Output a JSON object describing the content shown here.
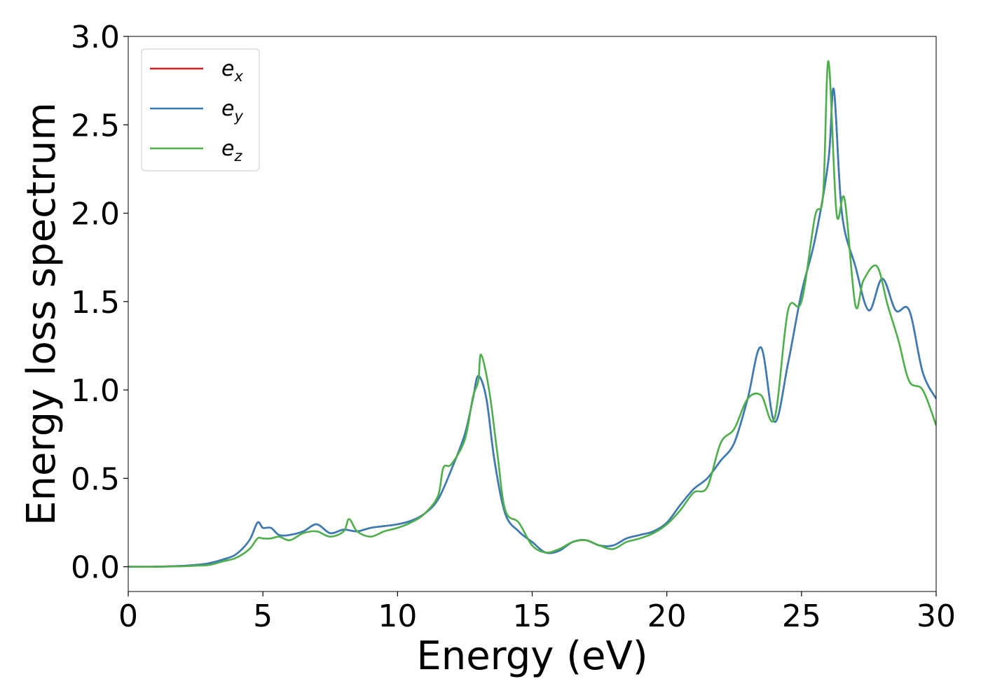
{
  "chart_data": {
    "type": "line",
    "xlabel": "Energy (eV)",
    "ylabel": "Energy loss spectrum",
    "xlim": [
      0,
      30
    ],
    "ylim": [
      -0.14,
      3.0
    ],
    "xticks": [
      0,
      5,
      10,
      15,
      20,
      25,
      30
    ],
    "xtick_labels": [
      "0",
      "5",
      "10",
      "15",
      "20",
      "25",
      "30"
    ],
    "yticks": [
      0.0,
      0.5,
      1.0,
      1.5,
      2.0,
      2.5,
      3.0
    ],
    "ytick_labels": [
      "0.0",
      "0.5",
      "1.0",
      "1.5",
      "2.0",
      "2.5",
      "3.0"
    ],
    "grid": false,
    "legend_position": "top-left",
    "series": [
      {
        "name": "e_x",
        "legend_base": "e",
        "legend_sub": "x",
        "color": "#e41a1c",
        "x": [
          0,
          1,
          2,
          2.5,
          3,
          3.5,
          4,
          4.5,
          4.8,
          5,
          5.3,
          5.6,
          6,
          6.5,
          7,
          7.5,
          8,
          8.5,
          9,
          9.5,
          10,
          10.5,
          11,
          11.5,
          12,
          12.5,
          12.8,
          13,
          13.3,
          13.6,
          14,
          14.5,
          15,
          15.5,
          16,
          16.5,
          17,
          17.5,
          18,
          18.5,
          19,
          19.5,
          20,
          20.5,
          21,
          21.5,
          22,
          22.5,
          23,
          23.5,
          24,
          24.5,
          25,
          25.5,
          26,
          26.2,
          26.5,
          27,
          27.5,
          28,
          28.5,
          29,
          29.5,
          30
        ],
        "values": [
          0,
          0,
          0.005,
          0.01,
          0.02,
          0.04,
          0.07,
          0.15,
          0.25,
          0.22,
          0.22,
          0.18,
          0.18,
          0.2,
          0.24,
          0.19,
          0.21,
          0.2,
          0.22,
          0.23,
          0.24,
          0.26,
          0.3,
          0.38,
          0.55,
          0.75,
          0.95,
          1.08,
          0.95,
          0.6,
          0.3,
          0.2,
          0.14,
          0.08,
          0.09,
          0.14,
          0.15,
          0.12,
          0.12,
          0.16,
          0.18,
          0.2,
          0.25,
          0.35,
          0.44,
          0.5,
          0.6,
          0.7,
          0.95,
          1.24,
          0.82,
          1.15,
          1.55,
          1.85,
          2.3,
          2.7,
          2.0,
          1.7,
          1.45,
          1.63,
          1.45,
          1.45,
          1.1,
          0.95
        ]
      },
      {
        "name": "e_y",
        "legend_base": "e",
        "legend_sub": "y",
        "color": "#377eb8",
        "x": [
          0,
          1,
          2,
          2.5,
          3,
          3.5,
          4,
          4.5,
          4.8,
          5,
          5.3,
          5.6,
          6,
          6.5,
          7,
          7.5,
          8,
          8.5,
          9,
          9.5,
          10,
          10.5,
          11,
          11.5,
          12,
          12.5,
          12.8,
          13,
          13.3,
          13.6,
          14,
          14.5,
          15,
          15.5,
          16,
          16.5,
          17,
          17.5,
          18,
          18.5,
          19,
          19.5,
          20,
          20.5,
          21,
          21.5,
          22,
          22.5,
          23,
          23.5,
          24,
          24.5,
          25,
          25.5,
          26,
          26.2,
          26.5,
          27,
          27.5,
          28,
          28.5,
          29,
          29.5,
          30
        ],
        "values": [
          0,
          0,
          0.005,
          0.01,
          0.02,
          0.04,
          0.07,
          0.15,
          0.25,
          0.22,
          0.22,
          0.18,
          0.18,
          0.2,
          0.24,
          0.19,
          0.21,
          0.2,
          0.22,
          0.23,
          0.24,
          0.26,
          0.3,
          0.38,
          0.55,
          0.75,
          0.95,
          1.08,
          0.95,
          0.6,
          0.3,
          0.2,
          0.14,
          0.08,
          0.09,
          0.14,
          0.15,
          0.12,
          0.12,
          0.16,
          0.18,
          0.2,
          0.25,
          0.35,
          0.44,
          0.5,
          0.6,
          0.7,
          0.95,
          1.24,
          0.82,
          1.15,
          1.55,
          1.85,
          2.3,
          2.7,
          2.0,
          1.7,
          1.45,
          1.63,
          1.45,
          1.45,
          1.1,
          0.95
        ]
      },
      {
        "name": "e_z",
        "legend_base": "e",
        "legend_sub": "z",
        "color": "#4daf4a",
        "x": [
          0,
          1,
          2,
          2.5,
          3,
          3.5,
          4,
          4.5,
          4.8,
          5,
          5.3,
          5.6,
          6,
          6.5,
          7,
          7.5,
          8,
          8.2,
          8.5,
          9,
          9.5,
          10,
          10.5,
          11,
          11.5,
          11.7,
          12,
          12.5,
          12.8,
          13,
          13.1,
          13.4,
          13.7,
          14,
          14.5,
          15,
          15.5,
          16,
          16.5,
          17,
          17.5,
          18,
          18.5,
          19,
          19.5,
          20,
          20.5,
          21,
          21.5,
          22,
          22.5,
          23,
          23.5,
          24,
          24.5,
          25,
          25.5,
          25.8,
          26,
          26.3,
          26.6,
          27,
          27.3,
          27.8,
          28.2,
          28.6,
          29,
          29.5,
          30
        ],
        "values": [
          0,
          0,
          0.003,
          0.006,
          0.01,
          0.03,
          0.05,
          0.1,
          0.16,
          0.16,
          0.16,
          0.17,
          0.15,
          0.19,
          0.2,
          0.17,
          0.2,
          0.27,
          0.2,
          0.17,
          0.2,
          0.22,
          0.25,
          0.3,
          0.4,
          0.56,
          0.58,
          0.72,
          0.96,
          1.05,
          1.2,
          1.0,
          0.65,
          0.32,
          0.25,
          0.12,
          0.08,
          0.1,
          0.14,
          0.15,
          0.12,
          0.1,
          0.14,
          0.16,
          0.19,
          0.24,
          0.32,
          0.42,
          0.45,
          0.7,
          0.78,
          0.95,
          0.97,
          0.84,
          1.45,
          1.5,
          1.98,
          2.1,
          2.86,
          2.0,
          2.08,
          1.48,
          1.62,
          1.7,
          1.48,
          1.28,
          1.05,
          1.0,
          0.8
        ]
      }
    ]
  }
}
